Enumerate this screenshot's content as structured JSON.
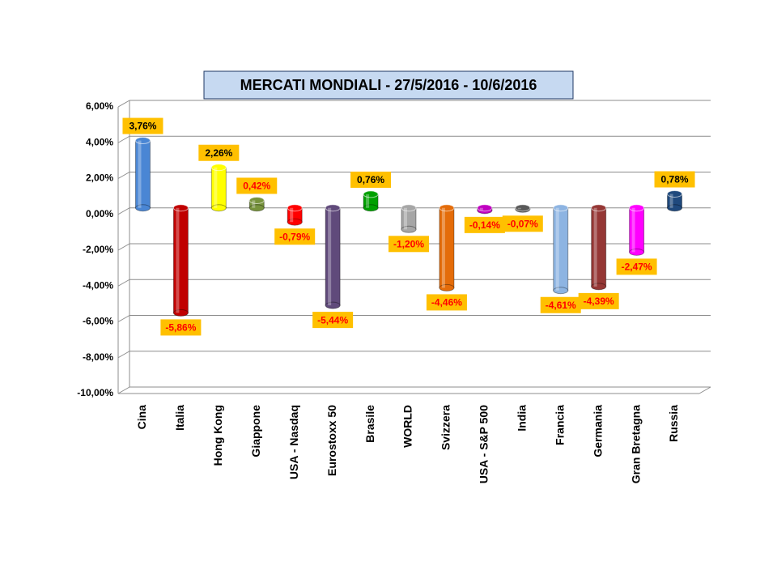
{
  "chart_data": {
    "type": "bar",
    "title": "MERCATI MONDIALI - 27/5/2016 - 10/6/2016",
    "categories": [
      "Cina",
      "Italia",
      "Hong Kong",
      "Giappone",
      "USA - Nasdaq",
      "Eurostoxx 50",
      "Brasile",
      "WORLD",
      "Svizzera",
      "USA - S&P 500",
      "India",
      "Francia",
      "Germania",
      "Gran Bretagna",
      "Russia"
    ],
    "values": [
      3.76,
      -5.86,
      2.26,
      0.42,
      -0.79,
      -5.44,
      0.76,
      -1.2,
      -4.46,
      -0.14,
      -0.07,
      -4.61,
      -4.39,
      -2.47,
      0.78
    ],
    "value_labels": [
      "3,76%",
      "-5,86%",
      "2,26%",
      "0,42%",
      "-0,79%",
      "-5,44%",
      "0,76%",
      "-1,20%",
      "-4,46%",
      "-0,14%",
      "-0,07%",
      "-4,61%",
      "-4,39%",
      "-2,47%",
      "0,78%"
    ],
    "colors": [
      "#4a86d4",
      "#c00000",
      "#ffff00",
      "#77933c",
      "#ff0000",
      "#604a7b",
      "#00a000",
      "#a6a6a6",
      "#e46c0a",
      "#c000c0",
      "#595959",
      "#8db4e2",
      "#953735",
      "#ff00ff",
      "#1f497d"
    ],
    "value_label_colors": [
      "#000000",
      "#ff0000",
      "#000000",
      "#ff0000",
      "#ff0000",
      "#ff0000",
      "#000000",
      "#ff0000",
      "#ff0000",
      "#ff0000",
      "#ff0000",
      "#ff0000",
      "#ff0000",
      "#ff0000",
      "#000000"
    ],
    "ylim": [
      -10,
      6
    ],
    "yticks": [
      {
        "value": -10,
        "label": "-10,00%"
      },
      {
        "value": -8,
        "label": "-8,00%"
      },
      {
        "value": -6,
        "label": "-6,00%"
      },
      {
        "value": -4,
        "label": "-4,00%"
      },
      {
        "value": -2,
        "label": "-2,00%"
      },
      {
        "value": 0,
        "label": "0,00%"
      },
      {
        "value": 2,
        "label": "2,00%"
      },
      {
        "value": 4,
        "label": "4,00%"
      },
      {
        "value": 6,
        "label": "6,00%"
      }
    ],
    "grid": true
  }
}
